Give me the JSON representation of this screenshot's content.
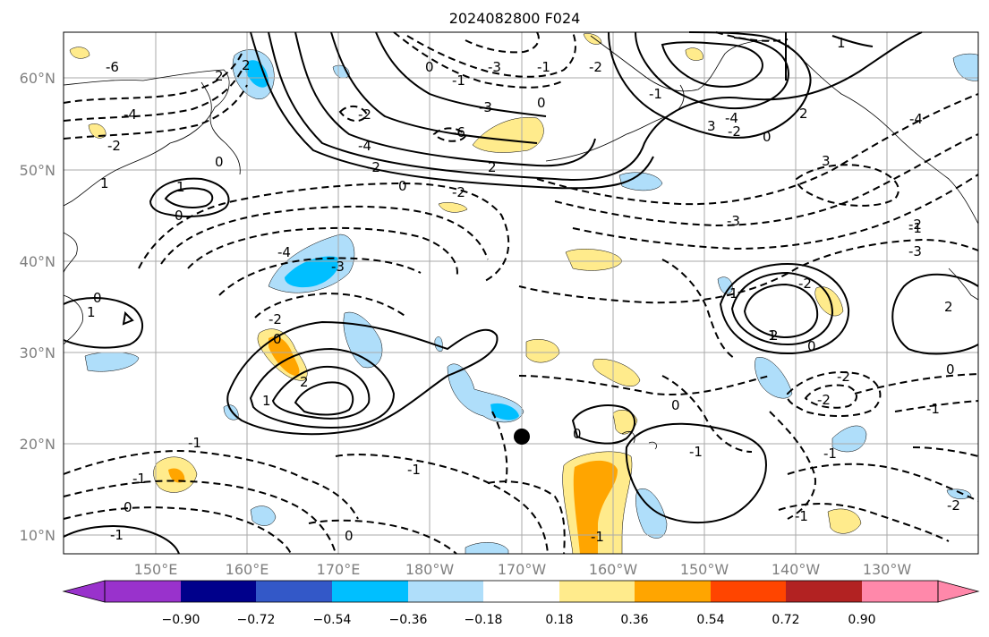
{
  "title": "2024082800 F024",
  "map": {
    "lat_labels": [
      "60°N",
      "50°N",
      "40°N",
      "30°N",
      "20°N",
      "10°N"
    ],
    "lon_labels": [
      "150°E",
      "160°E",
      "170°E",
      "180°W",
      "170°W",
      "160°W",
      "150°W",
      "140°W",
      "130°W"
    ],
    "marker": {
      "lat": 21,
      "lon": "170°W"
    }
  },
  "colorbar": {
    "ticks": [
      "−0.90",
      "−0.72",
      "−0.54",
      "−0.36",
      "−0.18",
      "0.18",
      "0.36",
      "0.54",
      "0.72",
      "0.90"
    ],
    "colors": [
      "#9932cc",
      "#00008b",
      "#3358c8",
      "#00bfff",
      "#afdefa",
      "#ffffff",
      "#ffeb8c",
      "#ffa500",
      "#ff4500",
      "#b22222",
      "#ff88aa"
    ]
  },
  "contour_labels": [
    "-6",
    "-4",
    "-2",
    "2",
    "0",
    "-3",
    "-6",
    "-3",
    "-1",
    "0",
    "-4",
    "-2",
    "2",
    "3",
    "0",
    "-2",
    "0",
    "-2",
    "-4",
    "1",
    "2",
    "1",
    "0",
    "-4",
    "-3",
    "0",
    "2",
    "1",
    "-2",
    "1",
    "0",
    "-1",
    "3",
    "-4",
    "1",
    "-3",
    "-2",
    "0",
    "1",
    "2",
    "-2",
    "0",
    "2",
    "-1",
    "-2",
    "-2",
    "-3",
    "0",
    "-1",
    "-1",
    "-1",
    "-1",
    "-2",
    "0",
    "-1",
    "0",
    "0",
    "-1",
    "-1",
    "-1",
    "1",
    "2",
    "-1",
    "-1",
    "0",
    "-2",
    "-2"
  ]
}
